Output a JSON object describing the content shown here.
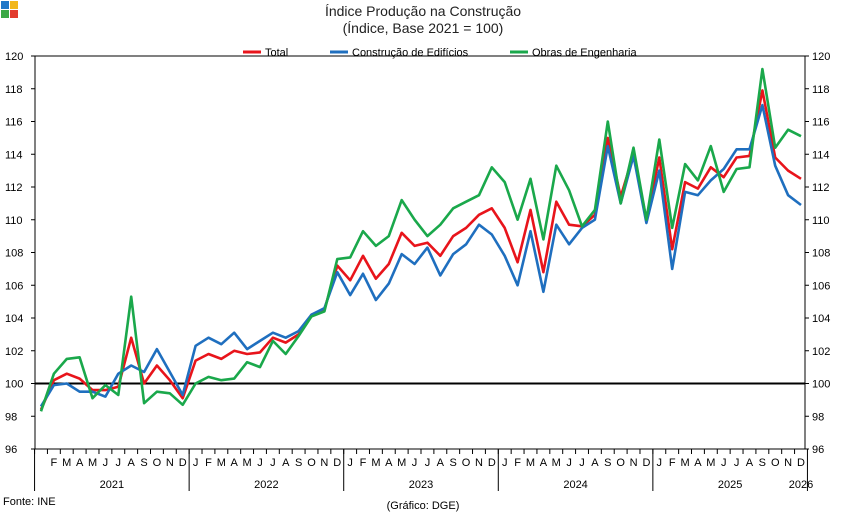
{
  "logo": {
    "colors": [
      "#1f77c8",
      "#f2b71b",
      "#3aa845",
      "#e23b2e"
    ],
    "icon": "ine-logo-icon"
  },
  "chart_data": {
    "type": "line",
    "title": "Índice Produção na Construção",
    "subtitle": "(Índice, Base 2021 = 100)",
    "xlabel": "",
    "ylabel": "",
    "ylim": [
      96,
      120
    ],
    "yticks": [
      96,
      98,
      100,
      102,
      104,
      106,
      108,
      110,
      112,
      114,
      116,
      118,
      120
    ],
    "grid": false,
    "legend_position": "top",
    "reference_line": 100,
    "month_letters": [
      "J",
      "F",
      "M",
      "A",
      "M",
      "J",
      "J",
      "A",
      "S",
      "O",
      "N",
      "D"
    ],
    "x_start": "2021-01",
    "x_end": "2026-01",
    "first_label_month": "2021-02",
    "years": [
      {
        "label": "2021",
        "start": 0,
        "months": 12
      },
      {
        "label": "2022",
        "start": 12,
        "months": 12
      },
      {
        "label": "2023",
        "start": 24,
        "months": 12
      },
      {
        "label": "2024",
        "start": 36,
        "months": 12
      },
      {
        "label": "2025",
        "start": 48,
        "months": 12
      },
      {
        "label": "2026",
        "start": 60,
        "months": 1
      }
    ],
    "series": [
      {
        "name": "Total",
        "color": "#e8141b",
        "values": [
          98.4,
          100.2,
          100.6,
          100.3,
          99.6,
          99.6,
          99.8,
          102.8,
          100.0,
          101.1,
          100.2,
          99.1,
          101.4,
          101.8,
          101.5,
          102.0,
          101.8,
          101.9,
          102.8,
          102.5,
          103.0,
          104.2,
          104.5,
          107.2,
          106.3,
          107.8,
          106.4,
          107.3,
          109.2,
          108.4,
          108.6,
          107.8,
          109.0,
          109.5,
          110.3,
          110.7,
          109.5,
          107.4,
          110.6,
          106.8,
          111.1,
          109.7,
          109.6,
          110.3,
          115.0,
          111.4,
          114.0,
          110.0,
          113.8,
          108.2,
          112.3,
          111.9,
          113.2,
          112.6,
          113.8,
          113.9,
          117.9,
          113.8,
          113.0,
          112.5
        ]
      },
      {
        "name": "Construção de Edifícios",
        "color": "#1f6fbf",
        "values": [
          98.6,
          99.9,
          100.0,
          99.5,
          99.5,
          99.2,
          100.6,
          101.1,
          100.7,
          102.1,
          100.7,
          99.3,
          102.3,
          102.8,
          102.4,
          103.1,
          102.1,
          102.6,
          103.1,
          102.8,
          103.2,
          104.2,
          104.6,
          106.8,
          105.4,
          106.7,
          105.1,
          106.1,
          107.9,
          107.3,
          108.3,
          106.6,
          107.9,
          108.5,
          109.7,
          109.1,
          107.8,
          106.0,
          109.3,
          105.6,
          109.7,
          108.5,
          109.5,
          110.0,
          114.5,
          111.0,
          113.9,
          109.8,
          113.0,
          107.0,
          111.7,
          111.5,
          112.4,
          113.1,
          114.3,
          114.3,
          117.0,
          113.3,
          111.5,
          110.9
        ]
      },
      {
        "name": "Obras de Engenharia",
        "color": "#1aa84b",
        "values": [
          98.3,
          100.6,
          101.5,
          101.6,
          99.1,
          99.9,
          99.3,
          105.3,
          98.8,
          99.5,
          99.4,
          98.7,
          100.0,
          100.4,
          100.2,
          100.3,
          101.3,
          101.0,
          102.6,
          101.8,
          102.9,
          104.1,
          104.4,
          107.6,
          107.7,
          109.3,
          108.4,
          109.0,
          111.2,
          110.0,
          109.0,
          109.7,
          110.7,
          111.1,
          111.5,
          113.2,
          112.3,
          110.0,
          112.5,
          108.8,
          113.3,
          111.8,
          109.6,
          110.6,
          116.0,
          111.0,
          114.4,
          110.0,
          114.9,
          109.5,
          113.4,
          112.4,
          114.5,
          111.7,
          113.1,
          113.2,
          119.2,
          114.4,
          115.5,
          115.1
        ]
      }
    ]
  },
  "footer": {
    "source": "Fonte: INE",
    "credit": "(Gráfico: DGE)"
  }
}
